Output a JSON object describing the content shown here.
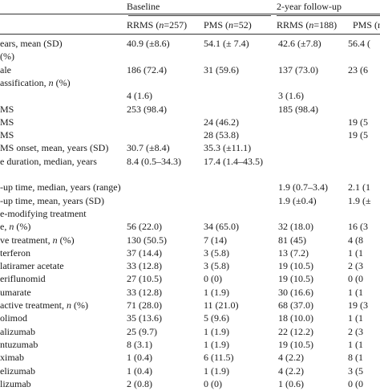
{
  "header": {
    "groups": [
      {
        "label": "Baseline"
      },
      {
        "label": "2-year follow-up"
      }
    ],
    "columns": [
      "RRMS (n=257)",
      "PMS (n=52)",
      "RRMS (n=188)",
      "PMS (n"
    ]
  },
  "rows": [
    {
      "label": "ears, mean (SD)",
      "v": [
        "40.9 (±8.6)",
        "54.1 (± 7.4)",
        "42.6 (±7.8)",
        "56.4 ("
      ]
    },
    {
      "label": " (%)",
      "v": [
        "",
        "",
        "",
        ""
      ]
    },
    {
      "label": "ale",
      "v": [
        "186 (72.4)",
        "31 (59.6)",
        "137 (73.0)",
        "23 (6"
      ]
    },
    {
      "label": "assification, n (%)",
      "v": [
        "",
        "",
        "",
        ""
      ]
    },
    {
      "label": "",
      "v": [
        "4 (1.6)",
        "",
        "3 (1.6)",
        ""
      ]
    },
    {
      "label": "MS",
      "v": [
        "253 (98.4)",
        "",
        "185 (98.4)",
        ""
      ]
    },
    {
      "label": "MS",
      "v": [
        "",
        "24 (46.2)",
        "",
        "19 (5"
      ]
    },
    {
      "label": "MS",
      "v": [
        "",
        "28 (53.8)",
        "",
        "19 (5"
      ]
    },
    {
      "label": " MS onset, mean, years (SD)",
      "v": [
        "30.7 (±8.4)",
        "35.3 (±11.1)",
        "",
        ""
      ]
    },
    {
      "label": "e duration, median, years",
      "v": [
        "8.4 (0.5–34.3)",
        "17.4 (1.4–43.5)",
        "",
        ""
      ]
    },
    {
      "label": "",
      "v": [
        "",
        "",
        "",
        ""
      ]
    },
    {
      "label": "-up time, median, years (range)",
      "v": [
        "",
        "",
        "1.9 (0.7–3.4)",
        "2.1 (1"
      ]
    },
    {
      "label": "-up time, mean, years (SD)",
      "v": [
        "",
        "",
        "1.9 (±0.4)",
        "1.9 (±"
      ]
    },
    {
      "label": "e-modifying treatment",
      "v": [
        "",
        "",
        "",
        ""
      ]
    },
    {
      "label": "e, n (%)",
      "v": [
        "56 (22.0)",
        "34 (65.0)",
        "32 (18.0)",
        "16 (3"
      ]
    },
    {
      "label": "ve treatment, n (%)",
      "v": [
        "130 (50.5)",
        "7 (14)",
        "81 (45)",
        "4 (8"
      ]
    },
    {
      "label": " terferon",
      "v": [
        "37 (14.4)",
        "3 (5.8)",
        "13 (7.2)",
        "1 (1"
      ]
    },
    {
      "label": "latiramer acetate",
      "v": [
        "33 (12.8)",
        "3 (5.8)",
        "19 (10.5)",
        "2 (3"
      ]
    },
    {
      "label": "eriflunomid",
      "v": [
        "27 (10.5)",
        "0 (0)",
        "19 (10.5)",
        "0 (0"
      ]
    },
    {
      "label": "umarate",
      "v": [
        "33 (12.8)",
        "1 (1.9)",
        "30 (16.6)",
        "1 (1"
      ]
    },
    {
      "label": " active treatment, n (%)",
      "v": [
        "71 (28.0)",
        "11 (21.0)",
        "68 (37.0)",
        "19 (3"
      ]
    },
    {
      "label": "olimod",
      "v": [
        "35 (13.6)",
        "5 (9.6)",
        "18 (10.0)",
        "1 (1"
      ]
    },
    {
      "label": "alizumab",
      "v": [
        "25 (9.7)",
        "1 (1.9)",
        "22 (12.2)",
        "2 (3"
      ]
    },
    {
      "label": "ntuzumab",
      "v": [
        "8 (3.1)",
        "1 (1.9)",
        "19 (10.5)",
        "1 (1"
      ]
    },
    {
      "label": "ximab",
      "v": [
        "1 (0.4)",
        "6 (11.5)",
        "4 (2.2)",
        "8 (1"
      ]
    },
    {
      "label": "elizumab",
      "v": [
        "1 (0.4)",
        "1 (1.9)",
        "4 (2.2)",
        "3 (5"
      ]
    },
    {
      "label": "lizumab",
      "v": [
        "2 (0.8)",
        "0 (0)",
        "1 (0.6)",
        "0 (0"
      ]
    }
  ]
}
